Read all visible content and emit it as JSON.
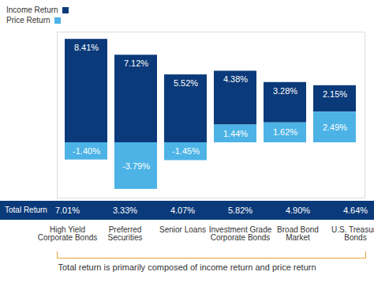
{
  "chart_data": {
    "type": "bar",
    "stacked": true,
    "data_labels": true,
    "tick_labels": "x",
    "legend": "top-left",
    "categories": [
      "High Yield Corporate Bonds",
      "Preferred Securities",
      "Senior Loans",
      "Investment Grade Corporate Bonds",
      "Broad Bond Market",
      "U.S. Treasury Bonds"
    ],
    "series": [
      {
        "name": "Income Return",
        "color": "#0b3a7a",
        "values": [
          8.41,
          7.12,
          5.52,
          4.38,
          3.28,
          2.15
        ],
        "value_labels": [
          "8.41%",
          "7.12%",
          "5.52%",
          "4.38%",
          "3.28%",
          "2.15%"
        ]
      },
      {
        "name": "Price Return",
        "color": "#4db3e6",
        "values": [
          -1.4,
          -3.79,
          -1.45,
          1.44,
          1.62,
          2.49
        ],
        "value_labels": [
          "-1.40%",
          "-3.79%",
          "-1.45%",
          "1.44%",
          "1.62%",
          "2.49%"
        ]
      }
    ],
    "total_return": {
      "name": "Total Return",
      "color": "#0b3a7a",
      "values": [
        7.01,
        3.33,
        4.07,
        5.82,
        4.9,
        4.64
      ],
      "value_labels": [
        "7.01%",
        "3.33%",
        "4.07%",
        "5.82%",
        "4.90%",
        "4.64%"
      ]
    },
    "caption": "Total return is primarily composed of income return and price return",
    "ylim": [
      -4.5,
      9
    ],
    "yticks": []
  }
}
